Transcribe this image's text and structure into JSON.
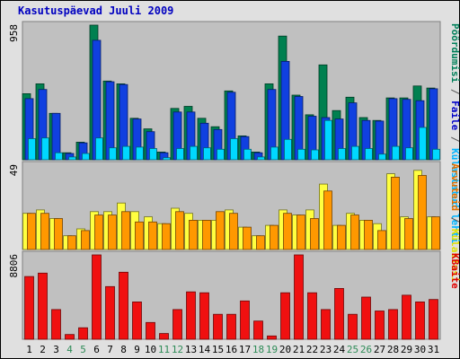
{
  "title": "Kasutuspäevad Juuli 2009",
  "chart_data": {
    "type": "bar",
    "categories": [
      "1",
      "2",
      "3",
      "4",
      "5",
      "6",
      "7",
      "8",
      "9",
      "10",
      "11",
      "12",
      "13",
      "14",
      "15",
      "16",
      "17",
      "18",
      "19",
      "20",
      "21",
      "22",
      "23",
      "24",
      "25",
      "26",
      "27",
      "28",
      "29",
      "30",
      "31"
    ],
    "weekend_days": [
      "4",
      "5",
      "11",
      "12",
      "18",
      "19",
      "25",
      "26"
    ],
    "panels": [
      {
        "id": "top",
        "ymax": 958,
        "ymax_label": "958",
        "right_label_parts": [
          {
            "text": "Pöördumisi",
            "color": "#00805a"
          },
          {
            "text": " / ",
            "color": "#555555"
          },
          {
            "text": "Faile",
            "color": "#0000c8"
          },
          {
            "text": " / ",
            "color": "#555555"
          },
          {
            "text": "Külastatud lehti",
            "color": "#00b4ff"
          }
        ],
        "series": [
          {
            "name": "Pöördumisi",
            "color": "#008050",
            "values": [
              470,
              540,
              330,
              50,
              125,
              958,
              560,
              540,
              295,
              220,
              55,
              365,
              380,
              295,
              235,
              490,
              170,
              55,
              540,
              880,
              460,
              320,
              675,
              350,
              445,
              300,
              280,
              440,
              440,
              525,
              510
            ]
          },
          {
            "name": "Faile",
            "color": "#1040e0",
            "values": [
              435,
              500,
              330,
              45,
              120,
              850,
              555,
              535,
              290,
              200,
              50,
              340,
              340,
              260,
              215,
              480,
              165,
              50,
              500,
              700,
              450,
              310,
              300,
              290,
              405,
              280,
              275,
              435,
              430,
              420,
              505
            ]
          },
          {
            "name": "Külastatud lehti",
            "color": "#00d8ff",
            "values": [
              150,
              155,
              50,
              20,
              45,
              155,
              85,
              95,
              90,
              80,
              15,
              80,
              95,
              85,
              75,
              150,
              75,
              20,
              90,
              145,
              75,
              70,
              280,
              80,
              95,
              80,
              40,
              95,
              85,
              230,
              75
            ]
          }
        ]
      },
      {
        "id": "mid",
        "ymax": 49,
        "ymax_label": "49",
        "right_label_parts": [
          {
            "text": "Arvuteid",
            "color": "#e07000"
          },
          {
            "text": " / ",
            "color": "#555555"
          },
          {
            "text": "Külastusi",
            "color": "#e0e000"
          }
        ],
        "series": [
          {
            "name": "Külastusi",
            "color": "#ffff40",
            "values": [
              21,
              23,
              18,
              8,
              12,
              22,
              22,
              27,
              22,
              19,
              15,
              24,
              21,
              17,
              17,
              23,
              13,
              8,
              14,
              23,
              20,
              23,
              38,
              14,
              21,
              17,
              15,
              44,
              19,
              46,
              19
            ]
          },
          {
            "name": "Arvuteid",
            "color": "#ff9800",
            "values": [
              21,
              21,
              18,
              8,
              11,
              20,
              20,
              22,
              16,
              16,
              15,
              22,
              17,
              17,
              22,
              21,
              13,
              8,
              14,
              21,
              20,
              18,
              34,
              14,
              20,
              17,
              11,
              42,
              18,
              43,
              19
            ]
          }
        ]
      },
      {
        "id": "bot",
        "ymax": 8806,
        "ymax_label": "8806",
        "right_label_parts": [
          {
            "text": "KBaite",
            "color": "#e00000"
          }
        ],
        "series": [
          {
            "name": "KBaite",
            "color": "#f01010",
            "values": [
              6550,
              6900,
              3100,
              500,
              1200,
              8806,
              5500,
              7000,
              3900,
              1750,
              600,
              3100,
              4950,
              4850,
              2600,
              2600,
              4000,
              1900,
              350,
              4850,
              8806,
              4850,
              3100,
              5300,
              2600,
              4400,
              2950,
              3100,
              4600,
              3900,
              4150
            ]
          }
        ]
      }
    ]
  }
}
